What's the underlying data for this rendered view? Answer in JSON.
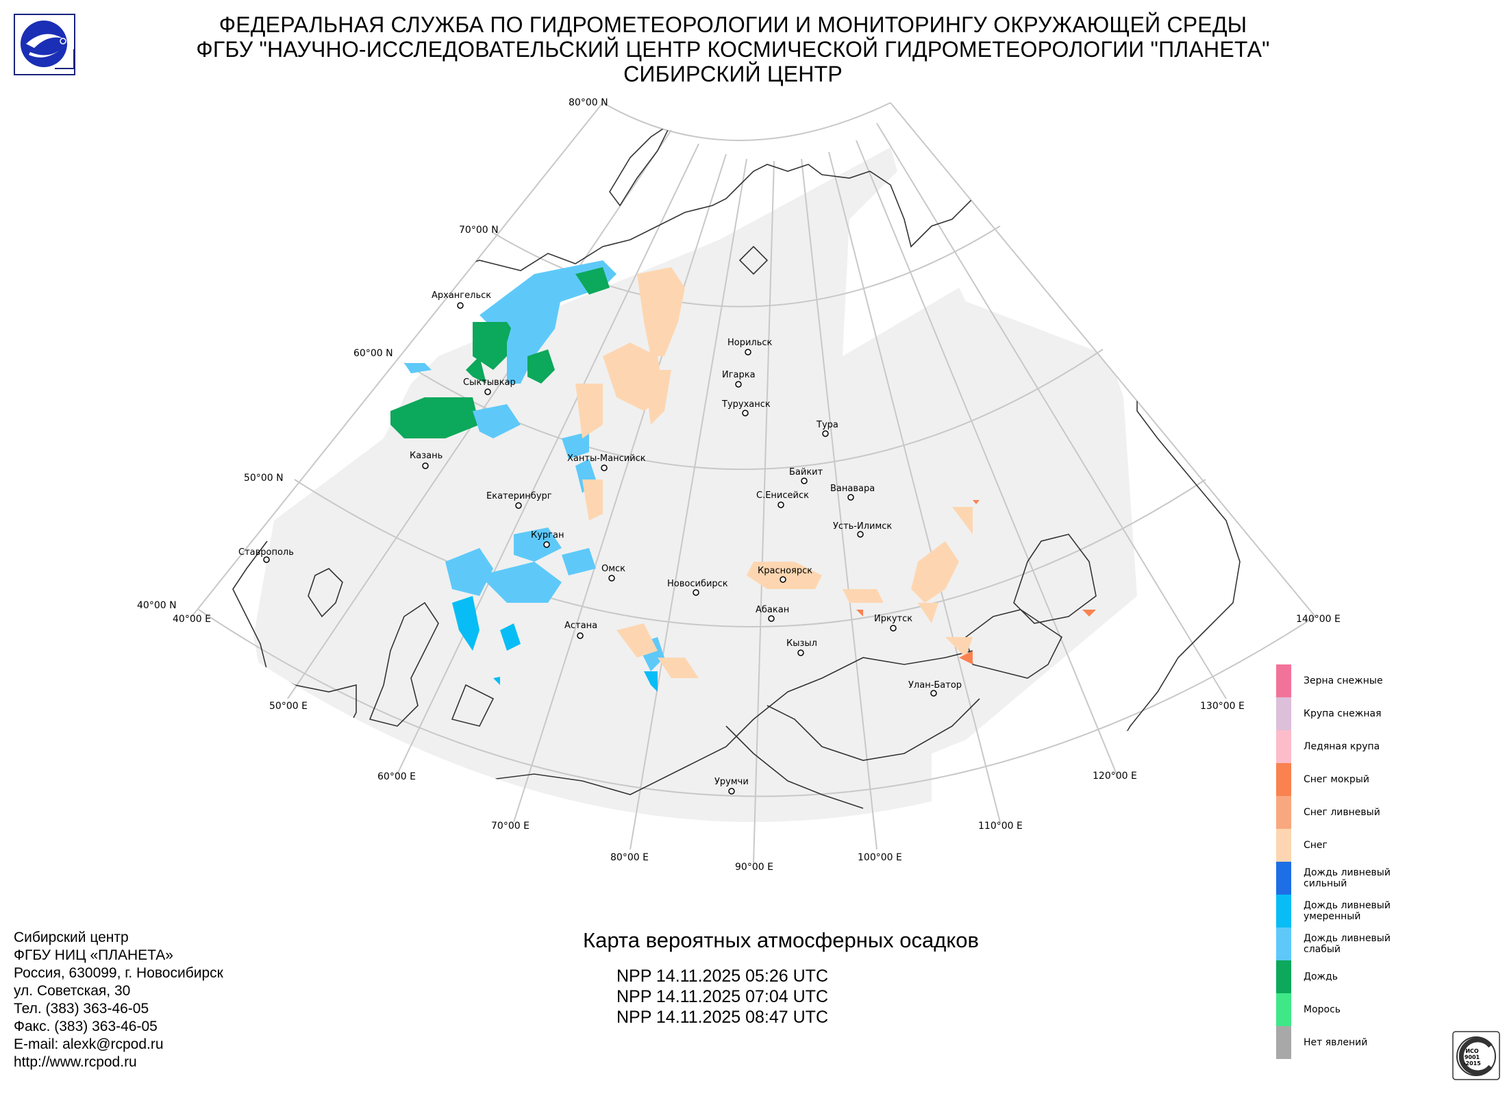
{
  "header": {
    "line1": "ФЕДЕРАЛЬНАЯ СЛУЖБА ПО ГИДРОМЕТЕОРОЛОГИИ И МОНИТОРИНГУ ОКРУЖАЮЩЕЙ СРЕДЫ",
    "line2": "ФГБУ \"НАУЧНО-ИССЛЕДОВАТЕЛЬСКИЙ ЦЕНТР КОСМИЧЕСКОЙ ГИДРОМЕТЕОРОЛОГИИ \"ПЛАНЕТА\"",
    "line3": "СИБИРСКИЙ ЦЕНТР"
  },
  "map": {
    "latitude_labels": [
      "80°00 N",
      "70°00 N",
      "60°00 N",
      "50°00 N",
      "40°00 N"
    ],
    "longitude_labels": [
      "40°00 E",
      "50°00 E",
      "60°00 E",
      "70°00 E",
      "80°00 E",
      "90°00 E",
      "100°00 E",
      "110°00 E",
      "120°00 E",
      "130°00 E",
      "140°00 E"
    ],
    "cities": [
      "Архангельск",
      "Сыктывкар",
      "Казань",
      "Екатеринбург",
      "Курган",
      "Ставрополь",
      "Ханты-Мансийск",
      "Норильск",
      "Игарка",
      "Туруханск",
      "Тура",
      "Байкит",
      "Ванавара",
      "С.Енисейск",
      "Усть-Илимск",
      "Омск",
      "Новосибирск",
      "Красноярск",
      "Астана",
      "Абакан",
      "Кызыл",
      "Иркутск",
      "Улан-Батор",
      "Урумчи"
    ]
  },
  "legend": [
    {
      "label": "Зерна снежные",
      "color": "#f27399"
    },
    {
      "label": "Крупа снежная",
      "color": "#dcbfd9"
    },
    {
      "label": "Ледяная крупа",
      "color": "#fdbcca"
    },
    {
      "label": "Снег мокрый",
      "color": "#f98250"
    },
    {
      "label": "Снег ливневый",
      "color": "#f9a77f"
    },
    {
      "label": "Снег",
      "color": "#fdd6b1"
    },
    {
      "label": "Дождь ливневый\nсильный",
      "color": "#1e6ee6"
    },
    {
      "label": "Дождь ливневый\nумеренный",
      "color": "#08bdf5"
    },
    {
      "label": "Дождь ливневый\nслабый",
      "color": "#5ec9f9"
    },
    {
      "label": "Дождь",
      "color": "#0ca85b"
    },
    {
      "label": "Морось",
      "color": "#3ee887"
    },
    {
      "label": "Нет явлений",
      "color": "#a8a8a8"
    }
  ],
  "contacts": [
    "Сибирский центр",
    "ФГБУ НИЦ «ПЛАНЕТА»",
    "Россия, 630099, г. Новосибирск",
    "ул. Советская, 30",
    "Тел. (383) 363-46-05",
    "Факс. (383) 363-46-05",
    "E-mail: alexk@rcpod.ru",
    "http://www.rcpod.ru"
  ],
  "map_title": "Карта вероятных атмосферных осадков",
  "passes": [
    "NPP 14.11.2025  05:26 UTC",
    "NPP 14.11.2025  07:04 UTC",
    "NPP 14.11.2025  08:47 UTC"
  ],
  "iso_badge": {
    "line1": "ИСО",
    "line2": "9001",
    "line3": "-2015"
  }
}
